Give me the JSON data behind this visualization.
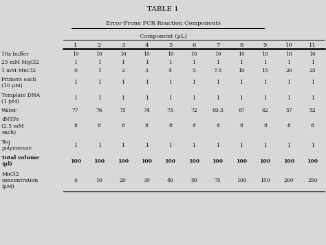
{
  "title": "TABLE 1",
  "subtitle": "Error-Prone PCR Reaction Components",
  "subheader": "Component (μL)",
  "columns": [
    "1",
    "2",
    "3",
    "4",
    "5",
    "6",
    "7",
    "8",
    "9",
    "10",
    "11"
  ],
  "rows": [
    [
      "10x buffer",
      "10",
      "10",
      "10",
      "10",
      "10",
      "10",
      "10",
      "10",
      "10",
      "10",
      "10"
    ],
    [
      "25 mM MgCl2",
      "1",
      "1",
      "1",
      "1",
      "1",
      "1",
      "1",
      "1",
      "1",
      "1",
      "1"
    ],
    [
      "1 mM MnCl2",
      "0",
      "1",
      "2",
      "3",
      "4",
      "5",
      "7.5",
      "10",
      "15",
      "20",
      "25"
    ],
    [
      "Primers each\n(10 μM)",
      "1",
      "1",
      "1",
      "1",
      "1",
      "1",
      "1",
      "1",
      "1",
      "1",
      "1"
    ],
    [
      "Template DNA\n(1 pM)",
      "1",
      "1",
      "1",
      "1",
      "1",
      "1",
      "1",
      "1",
      "1",
      "1",
      "1"
    ],
    [
      "Water",
      "77",
      "76",
      "75",
      "74",
      "73",
      "72",
      "69.5",
      "67",
      "62",
      "57",
      "52"
    ],
    [
      "dNTPs\n(2.5 mM\neach)",
      "8",
      "8",
      "8",
      "8",
      "8",
      "8",
      "8",
      "8",
      "8",
      "8",
      "8"
    ],
    [
      "Taq\npolymerase",
      "1",
      "1",
      "1",
      "1",
      "1",
      "1",
      "1",
      "1",
      "1",
      "1",
      "1"
    ],
    [
      "Total volume\n(μl)",
      "100",
      "100",
      "100",
      "100",
      "100",
      "100",
      "100",
      "100",
      "100",
      "100",
      "100"
    ],
    [
      "MnCl2\nconcentration\n(μM)",
      "0",
      "10",
      "20",
      "30",
      "40",
      "50",
      "75",
      "100",
      "150",
      "200",
      "250"
    ]
  ],
  "bold_rows": [
    8
  ],
  "background_color": "#d8d8d8",
  "text_color": "#111111",
  "title_fontsize": 7.5,
  "subtitle_fontsize": 6.0,
  "subheader_fontsize": 6.0,
  "col_header_fontsize": 6.0,
  "cell_fontsize": 5.5,
  "label_fontsize": 5.5
}
